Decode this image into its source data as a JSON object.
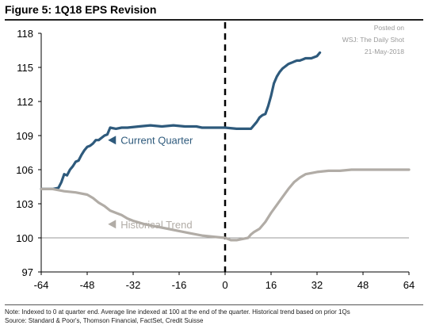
{
  "figure_title": "Figure 5: 1Q18 EPS Revision",
  "watermark": {
    "line1": "Posted on",
    "line2": "WSJ: The Daily Shot",
    "line3": "21-May-2018"
  },
  "footer": {
    "note": "Note: Indexed to 0 at quarter end.  Average line indexed at 100 at the end of the quarter. Historical trend based on prior 1Qs",
    "source": "Source: Standard & Poor's, Thomson Financial, FactSet, Credit Suisse"
  },
  "colors": {
    "current": "#2e5a7c",
    "historical": "#b1aca6",
    "axis": "#000000",
    "reference": "#9a9a9a",
    "divider": "#000000"
  },
  "chart_data": {
    "type": "line",
    "title": "Figure 5: 1Q18 EPS Revision",
    "xlabel": "",
    "ylabel": "",
    "xlim": [
      -64,
      64
    ],
    "ylim": [
      97,
      118
    ],
    "x_ticks": [
      "-64",
      "-48",
      "-32",
      "-16",
      "0",
      "16",
      "32",
      "48",
      "64"
    ],
    "y_ticks": [
      "97",
      "100",
      "103",
      "106",
      "109",
      "112",
      "115",
      "118"
    ],
    "reference_line_y": 100,
    "vertical_divider_x": 0,
    "grid": false,
    "series": [
      {
        "name": "Current Quarter",
        "label_anchor": {
          "x": -38,
          "y": 108.6
        },
        "points": [
          [
            -64,
            104.3
          ],
          [
            -60,
            104.3
          ],
          [
            -58,
            104.4
          ],
          [
            -57,
            104.9
          ],
          [
            -56,
            105.6
          ],
          [
            -55,
            105.5
          ],
          [
            -54,
            106.0
          ],
          [
            -53,
            106.3
          ],
          [
            -52,
            106.7
          ],
          [
            -51,
            106.8
          ],
          [
            -50,
            107.3
          ],
          [
            -49,
            107.7
          ],
          [
            -48,
            108.0
          ],
          [
            -47,
            108.1
          ],
          [
            -46,
            108.3
          ],
          [
            -45,
            108.6
          ],
          [
            -44,
            108.6
          ],
          [
            -43,
            108.8
          ],
          [
            -42,
            109.0
          ],
          [
            -41,
            109.1
          ],
          [
            -40,
            109.7
          ],
          [
            -38,
            109.6
          ],
          [
            -36,
            109.7
          ],
          [
            -34,
            109.7
          ],
          [
            -30,
            109.8
          ],
          [
            -26,
            109.9
          ],
          [
            -22,
            109.8
          ],
          [
            -18,
            109.9
          ],
          [
            -14,
            109.8
          ],
          [
            -10,
            109.8
          ],
          [
            -8,
            109.7
          ],
          [
            -4,
            109.7
          ],
          [
            0,
            109.7
          ],
          [
            4,
            109.6
          ],
          [
            8,
            109.6
          ],
          [
            9,
            109.6
          ],
          [
            10,
            109.9
          ],
          [
            11,
            110.2
          ],
          [
            12,
            110.6
          ],
          [
            13,
            110.8
          ],
          [
            14,
            110.9
          ],
          [
            15,
            111.6
          ],
          [
            16,
            112.5
          ],
          [
            17,
            113.6
          ],
          [
            18,
            114.2
          ],
          [
            19,
            114.6
          ],
          [
            20,
            114.9
          ],
          [
            21,
            115.1
          ],
          [
            22,
            115.3
          ],
          [
            23,
            115.4
          ],
          [
            24,
            115.5
          ],
          [
            25,
            115.6
          ],
          [
            26,
            115.6
          ],
          [
            27,
            115.7
          ],
          [
            28,
            115.8
          ],
          [
            29,
            115.8
          ],
          [
            30,
            115.8
          ],
          [
            31,
            115.9
          ],
          [
            32,
            116.0
          ],
          [
            33,
            116.3
          ]
        ]
      },
      {
        "name": "Historical Trend",
        "label_anchor": {
          "x": -38,
          "y": 101.2
        },
        "points": [
          [
            -64,
            104.3
          ],
          [
            -60,
            104.3
          ],
          [
            -58,
            104.2
          ],
          [
            -56,
            104.1
          ],
          [
            -52,
            104.0
          ],
          [
            -48,
            103.8
          ],
          [
            -46,
            103.5
          ],
          [
            -44,
            103.1
          ],
          [
            -42,
            102.8
          ],
          [
            -40,
            102.4
          ],
          [
            -38,
            102.2
          ],
          [
            -36,
            102.0
          ],
          [
            -34,
            101.7
          ],
          [
            -32,
            101.5
          ],
          [
            -28,
            101.2
          ],
          [
            -24,
            101.0
          ],
          [
            -20,
            100.8
          ],
          [
            -16,
            100.6
          ],
          [
            -12,
            100.4
          ],
          [
            -8,
            100.2
          ],
          [
            -4,
            100.1
          ],
          [
            0,
            100.0
          ],
          [
            1,
            99.9
          ],
          [
            2,
            99.8
          ],
          [
            3,
            99.8
          ],
          [
            4,
            99.8
          ],
          [
            6,
            99.9
          ],
          [
            8,
            100.0
          ],
          [
            9,
            100.3
          ],
          [
            10,
            100.5
          ],
          [
            12,
            100.8
          ],
          [
            14,
            101.4
          ],
          [
            16,
            102.2
          ],
          [
            18,
            102.9
          ],
          [
            20,
            103.6
          ],
          [
            22,
            104.3
          ],
          [
            24,
            104.9
          ],
          [
            26,
            105.3
          ],
          [
            28,
            105.6
          ],
          [
            30,
            105.7
          ],
          [
            32,
            105.8
          ],
          [
            36,
            105.9
          ],
          [
            40,
            105.9
          ],
          [
            44,
            106.0
          ],
          [
            48,
            106.0
          ],
          [
            52,
            106.0
          ],
          [
            56,
            106.0
          ],
          [
            60,
            106.0
          ],
          [
            64,
            106.0
          ]
        ]
      }
    ]
  }
}
